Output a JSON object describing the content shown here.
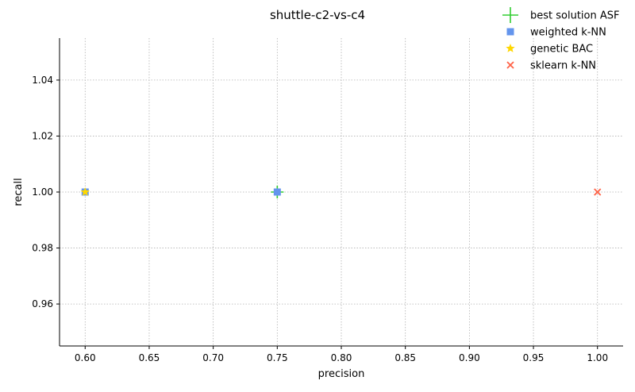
{
  "chart_data": {
    "type": "scatter",
    "title": "shuttle-c2-vs-c4",
    "xlabel": "precision",
    "ylabel": "recall",
    "xlim": [
      0.58,
      1.02
    ],
    "ylim": [
      0.945,
      1.055
    ],
    "xticks": [
      "0.60",
      "0.65",
      "0.70",
      "0.75",
      "0.80",
      "0.85",
      "0.90",
      "0.95",
      "1.00"
    ],
    "yticks": [
      "0.96",
      "0.98",
      "1.00",
      "1.02",
      "1.04"
    ],
    "grid": true,
    "legend_position": "top-right",
    "series": [
      {
        "name": "best solution ASF",
        "marker": "plus",
        "color": "#32cd32",
        "points": [
          [
            0.75,
            1.0
          ]
        ]
      },
      {
        "name": "weighted k-NN",
        "marker": "square",
        "color": "#6495ed",
        "points": [
          [
            0.6,
            1.0
          ],
          [
            0.75,
            1.0
          ]
        ]
      },
      {
        "name": "genetic BAC",
        "marker": "star",
        "color": "#ffd700",
        "points": [
          [
            0.6,
            1.0
          ]
        ]
      },
      {
        "name": "sklearn k-NN",
        "marker": "x",
        "color": "#ff6347",
        "points": [
          [
            1.0,
            1.0
          ]
        ]
      }
    ]
  }
}
